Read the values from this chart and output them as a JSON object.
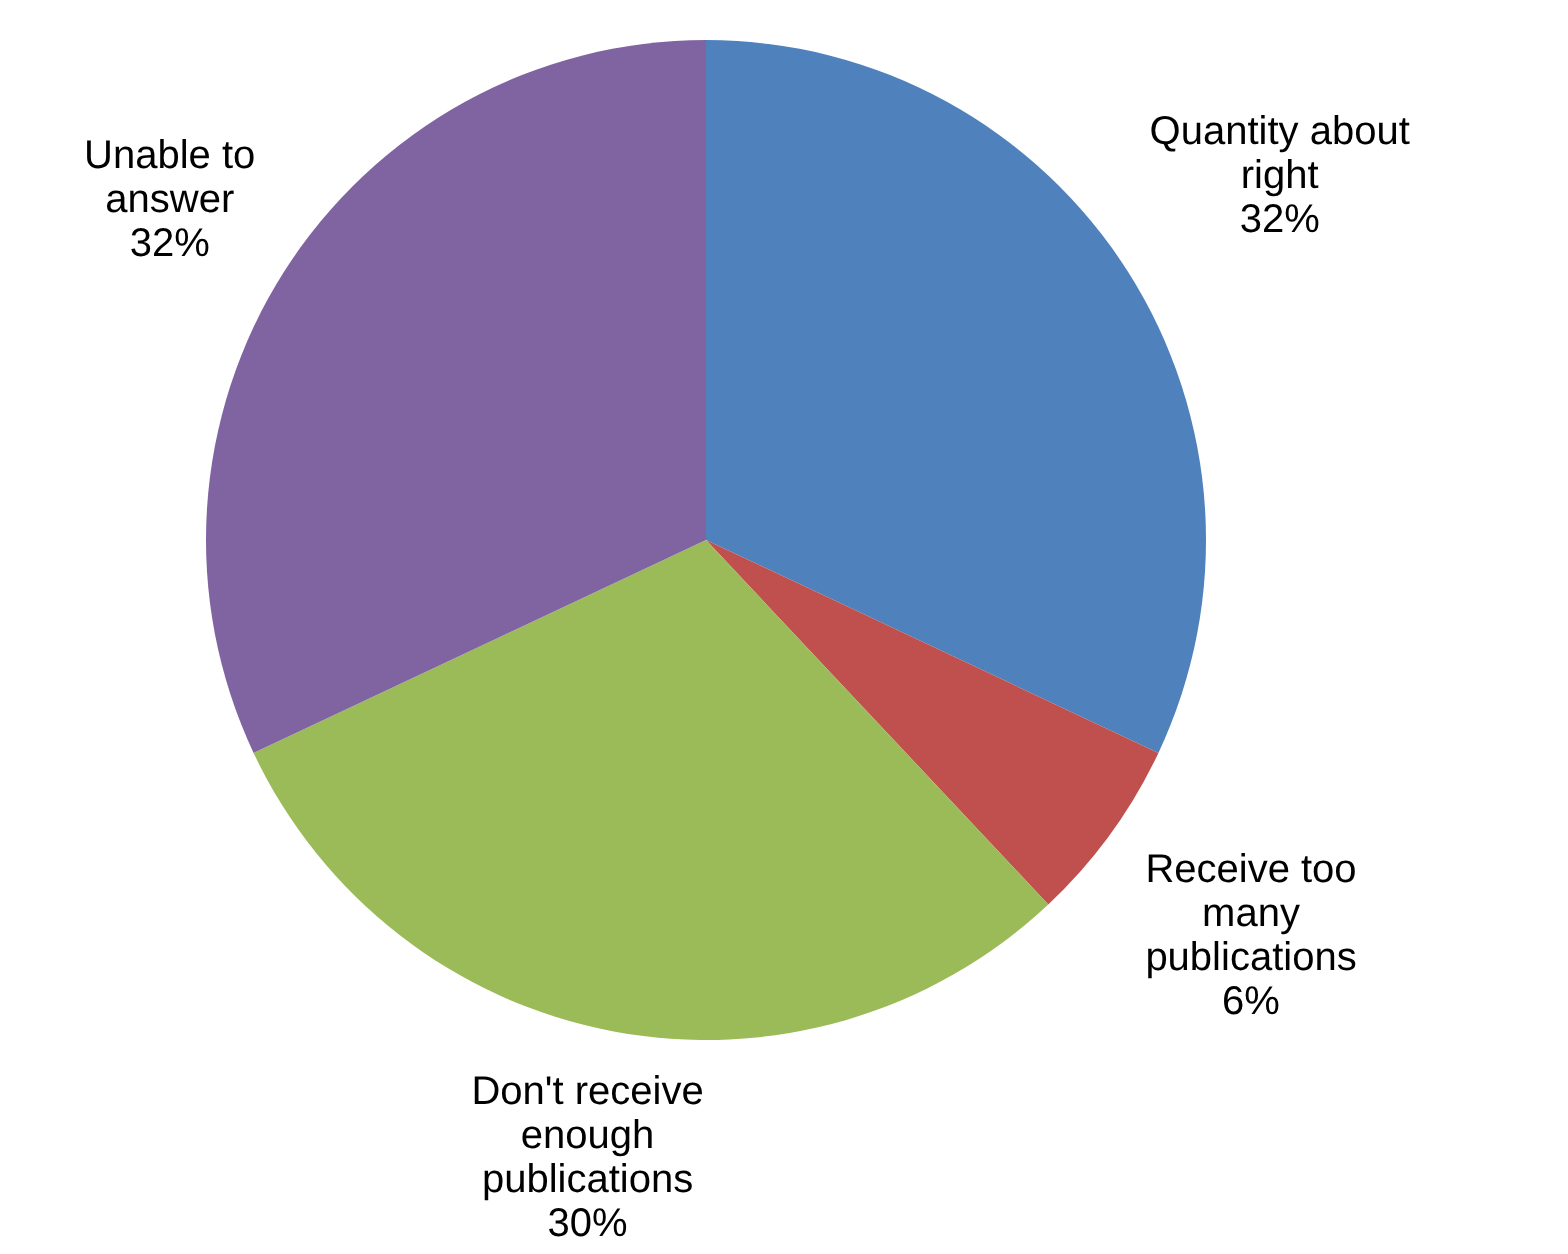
{
  "chart_data": {
    "type": "pie",
    "categories": [
      "Quantity about right",
      "Receive too many publications",
      "Don't receive enough publications",
      "Unable to answer"
    ],
    "values": [
      32,
      6,
      30,
      32
    ],
    "value_labels": [
      "32%",
      "6%",
      "30%",
      "32%"
    ],
    "colors": [
      "#4f81bd",
      "#c0504d",
      "#9bbb59",
      "#8064a2"
    ]
  }
}
